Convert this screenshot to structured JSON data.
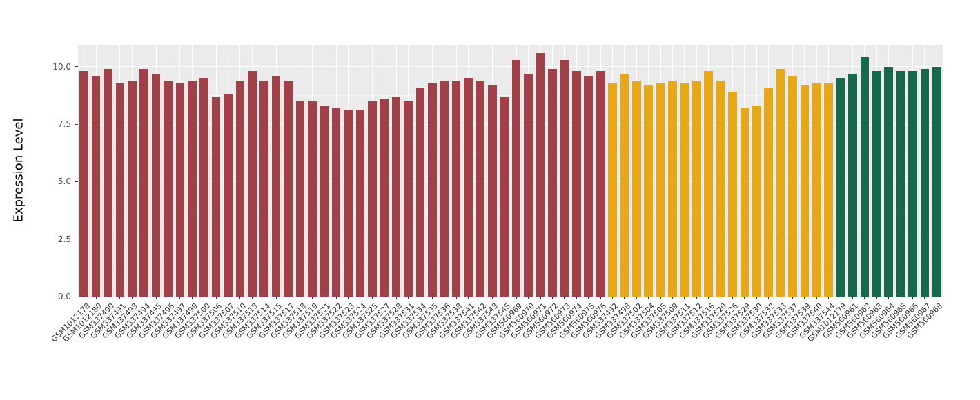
{
  "chart_data": {
    "type": "bar",
    "title": "",
    "xlabel": "",
    "ylabel": "Expression Level",
    "ylim": [
      0,
      10.95
    ],
    "ytick_values": [
      0,
      2.5,
      5,
      7.5,
      10
    ],
    "yticks": [
      "0.0",
      "2.5",
      "5.0",
      "7.5",
      "10.0"
    ],
    "ytick_minor": [
      1.25,
      3.75,
      6.25,
      8.75
    ],
    "grid": true,
    "legend": false,
    "panel_bg": "#EBEBEB",
    "grid_color": "#FFFFFF",
    "series": [
      {
        "name": "group-maroon",
        "color": "#A04049",
        "categories": [
          "GSM1012178",
          "GSM1012180",
          "GSM337490",
          "GSM337491",
          "GSM337493",
          "GSM337494",
          "GSM337495",
          "GSM337496",
          "GSM337497",
          "GSM337499",
          "GSM337500",
          "GSM337506",
          "GSM337507",
          "GSM337510",
          "GSM337513",
          "GSM337514",
          "GSM337515",
          "GSM337517",
          "GSM337518",
          "GSM337519",
          "GSM337521",
          "GSM337522",
          "GSM337523",
          "GSM337524",
          "GSM337525",
          "GSM337527",
          "GSM337528",
          "GSM337531",
          "GSM337534",
          "GSM337535",
          "GSM337536",
          "GSM337538",
          "GSM337541",
          "GSM337542",
          "GSM337543",
          "GSM337545",
          "GSM560969",
          "GSM560970",
          "GSM560971",
          "GSM560972",
          "GSM560973",
          "GSM560974",
          "GSM560975",
          "GSM560976"
        ],
        "values": [
          9.8,
          9.6,
          9.9,
          9.3,
          9.4,
          9.9,
          9.7,
          9.4,
          9.3,
          9.4,
          9.5,
          8.7,
          8.8,
          9.4,
          9.8,
          9.4,
          9.6,
          9.4,
          8.5,
          8.5,
          8.3,
          8.2,
          8.1,
          8.1,
          8.5,
          8.6,
          8.7,
          8.5,
          9.1,
          9.3,
          9.4,
          9.4,
          9.5,
          9.4,
          9.2,
          8.7,
          10.3,
          9.7,
          10.6,
          9.9,
          10.3,
          9.8,
          9.6,
          9.8
        ]
      },
      {
        "name": "group-orange",
        "color": "#E6A817",
        "categories": [
          "GSM337492",
          "GSM337498",
          "GSM337502",
          "GSM337504",
          "GSM337505",
          "GSM337509",
          "GSM337511",
          "GSM337512",
          "GSM337516",
          "GSM337520",
          "GSM337526",
          "GSM337529",
          "GSM337530",
          "GSM337532",
          "GSM337533",
          "GSM337537",
          "GSM337539",
          "GSM337540",
          "GSM337544"
        ],
        "values": [
          9.3,
          9.7,
          9.4,
          9.2,
          9.3,
          9.4,
          9.3,
          9.4,
          9.8,
          9.4,
          8.9,
          8.2,
          8.3,
          9.1,
          9.9,
          9.6,
          9.2,
          9.3,
          9.3
        ]
      },
      {
        "name": "group-green",
        "color": "#17694C",
        "categories": [
          "GSM1012179",
          "GSM560961",
          "GSM560962",
          "GSM560963",
          "GSM560964",
          "GSM560965",
          "GSM560966",
          "GSM560967",
          "GSM560968"
        ],
        "values": [
          9.5,
          9.7,
          10.4,
          9.8,
          10.0,
          9.8,
          9.8,
          9.9,
          10.0
        ]
      }
    ]
  }
}
